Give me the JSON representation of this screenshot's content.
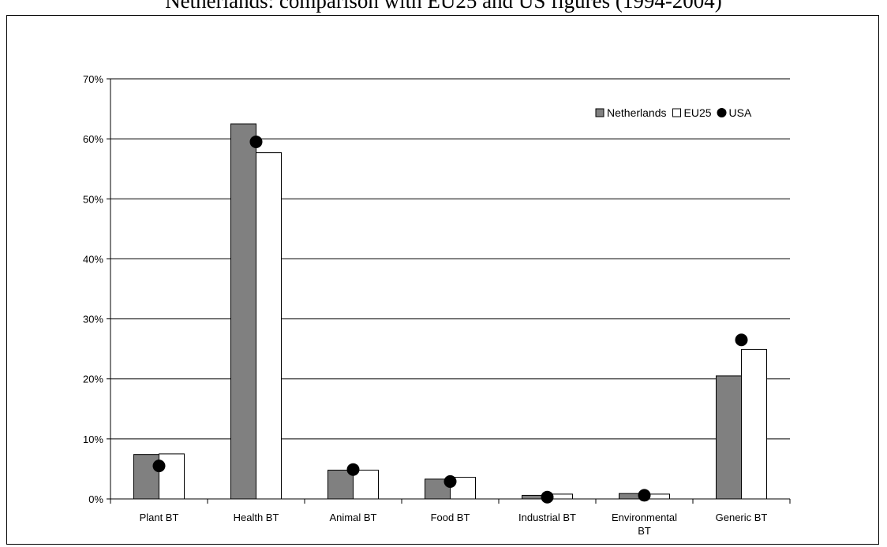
{
  "chart_data": {
    "type": "bar",
    "title": "Netherlands: comparison with EU25 and US figures (1994-2004)",
    "categories": [
      "Plant BT",
      "Health BT",
      "Animal BT",
      "Food BT",
      "Industrial BT",
      "Environmental BT",
      "Generic BT"
    ],
    "category_lines": [
      [
        "Plant BT"
      ],
      [
        "Health BT"
      ],
      [
        "Animal BT"
      ],
      [
        "Food BT"
      ],
      [
        "Industrial BT"
      ],
      [
        "Environmental",
        "BT"
      ],
      [
        "Generic BT"
      ]
    ],
    "series": [
      {
        "name": "Netherlands",
        "kind": "bar",
        "color": "#808080",
        "values": [
          7.4,
          62.5,
          4.8,
          3.3,
          0.6,
          0.9,
          20.5
        ]
      },
      {
        "name": "EU25",
        "kind": "bar",
        "color": "#ffffff",
        "values": [
          7.5,
          57.7,
          4.8,
          3.6,
          0.8,
          0.8,
          24.9
        ]
      },
      {
        "name": "USA",
        "kind": "marker",
        "color": "#000000",
        "values": [
          5.5,
          59.5,
          4.9,
          2.9,
          0.3,
          0.6,
          26.5
        ]
      }
    ],
    "ylim": [
      0,
      70
    ],
    "yticks": [
      0,
      10,
      20,
      30,
      40,
      50,
      60,
      70
    ],
    "ytick_labels": [
      "0%",
      "10%",
      "20%",
      "30%",
      "40%",
      "50%",
      "60%",
      "70%"
    ],
    "grid": true,
    "legend_position": "top-right"
  }
}
